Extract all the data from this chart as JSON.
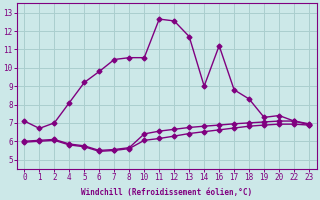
{
  "xlabel": "Windchill (Refroidissement éolien,°C)",
  "background_color": "#cce8e8",
  "line_color": "#800080",
  "grid_color": "#aacece",
  "xtick_labels": [
    "0",
    "1",
    "2",
    "4",
    "5",
    "6",
    "7",
    "8",
    "10",
    "11",
    "12",
    "13",
    "14",
    "16",
    "17",
    "18",
    "19",
    "20",
    "22",
    "23"
  ],
  "xtick_pos": [
    0,
    1,
    2,
    3,
    4,
    5,
    6,
    7,
    8,
    9,
    10,
    11,
    12,
    13,
    14,
    15,
    16,
    17,
    18,
    19
  ],
  "yticks": [
    5,
    6,
    7,
    8,
    9,
    10,
    11,
    12,
    13
  ],
  "ylim": [
    4.5,
    13.5
  ],
  "xlim": [
    -0.5,
    19.5
  ],
  "line1_y": [
    7.1,
    6.7,
    7.0,
    8.1,
    9.2,
    9.8,
    10.45,
    10.55,
    10.55,
    12.65,
    12.55,
    11.7,
    9.0,
    11.2,
    8.8,
    8.3,
    7.3,
    7.4,
    7.1,
    6.9
  ],
  "line2_y": [
    6.0,
    6.05,
    6.1,
    5.85,
    5.75,
    5.5,
    5.55,
    5.65,
    6.4,
    6.55,
    6.65,
    6.75,
    6.82,
    6.88,
    6.95,
    7.0,
    7.05,
    7.1,
    7.1,
    6.95
  ],
  "line3_y": [
    5.95,
    6.0,
    6.05,
    5.8,
    5.7,
    5.45,
    5.5,
    5.6,
    6.05,
    6.15,
    6.28,
    6.42,
    6.52,
    6.62,
    6.72,
    6.82,
    6.88,
    6.93,
    6.93,
    6.88
  ],
  "marker_size": 2.5,
  "line_width": 1.0,
  "font_family": "monospace",
  "tick_fontsize": 5.5,
  "xlabel_fontsize": 5.5
}
